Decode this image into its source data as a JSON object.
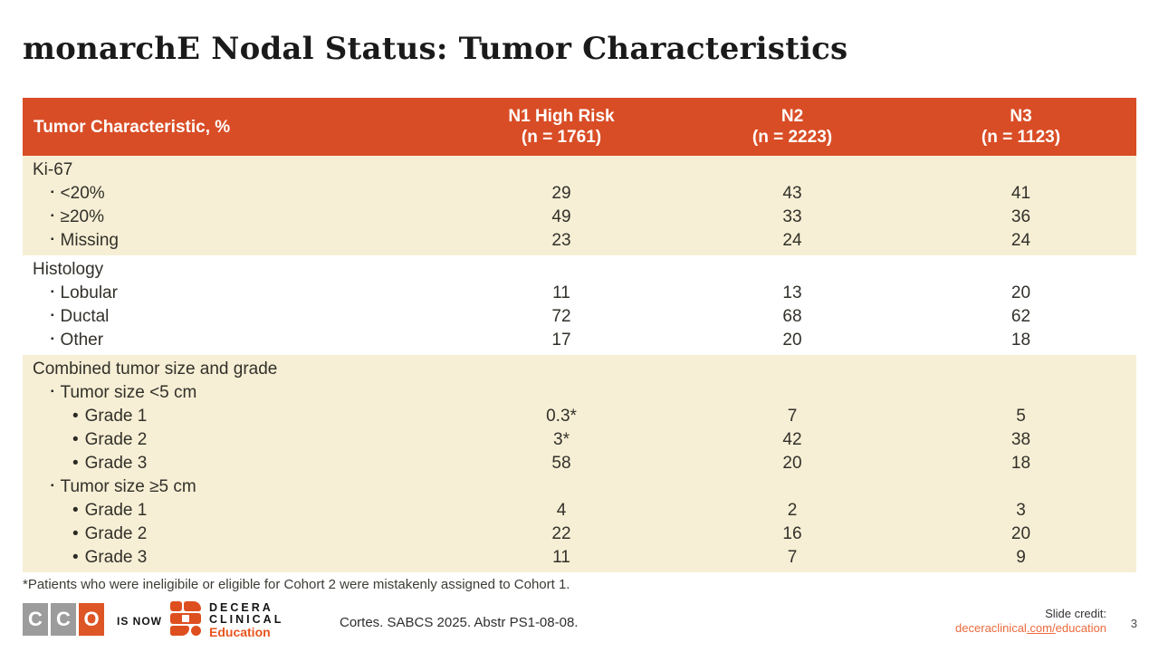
{
  "title": "monarchE Nodal Status: Tumor Characteristics",
  "table": {
    "header": {
      "col1": "Tumor Characteristic, %",
      "columns": [
        {
          "line1": "N1 High Risk",
          "line2": "(n = 1761)"
        },
        {
          "line1": "N2",
          "line2": "(n = 2223)"
        },
        {
          "line1": "N3",
          "line2": "(n = 1123)"
        }
      ]
    },
    "bullets": {
      "level1": "▪",
      "level2": "•"
    },
    "sections": [
      {
        "bg": "cream",
        "rows": [
          {
            "label": "Ki-67",
            "level": 0,
            "values": [
              "",
              "",
              ""
            ]
          },
          {
            "label": "<20%",
            "level": 1,
            "values": [
              "29",
              "43",
              "41"
            ]
          },
          {
            "label": "≥20%",
            "level": 1,
            "values": [
              "49",
              "33",
              "36"
            ]
          },
          {
            "label": "Missing",
            "level": 1,
            "values": [
              "23",
              "24",
              "24"
            ]
          }
        ]
      },
      {
        "bg": "white",
        "rows": [
          {
            "label": "Histology",
            "level": 0,
            "values": [
              "",
              "",
              ""
            ]
          },
          {
            "label": "Lobular",
            "level": 1,
            "values": [
              "11",
              "13",
              "20"
            ]
          },
          {
            "label": "Ductal",
            "level": 1,
            "values": [
              "72",
              "68",
              "62"
            ]
          },
          {
            "label": "Other",
            "level": 1,
            "values": [
              "17",
              "20",
              "18"
            ]
          }
        ]
      },
      {
        "bg": "cream",
        "rows": [
          {
            "label": "Combined tumor size and grade",
            "level": 0,
            "values": [
              "",
              "",
              ""
            ]
          },
          {
            "label": "Tumor size <5 cm",
            "level": 1,
            "values": [
              "",
              "",
              ""
            ]
          },
          {
            "label": "Grade 1",
            "level": 2,
            "values": [
              "0.3*",
              "7",
              "5"
            ]
          },
          {
            "label": "Grade 2",
            "level": 2,
            "values": [
              "3*",
              "42",
              "38"
            ]
          },
          {
            "label": "Grade 3",
            "level": 2,
            "values": [
              "58",
              "20",
              "18"
            ]
          },
          {
            "label": "Tumor size ≥5 cm",
            "level": 1,
            "values": [
              "",
              "",
              ""
            ]
          },
          {
            "label": "Grade 1",
            "level": 2,
            "values": [
              "4",
              "2",
              "3"
            ]
          },
          {
            "label": "Grade 2",
            "level": 2,
            "values": [
              "22",
              "16",
              "20"
            ]
          },
          {
            "label": "Grade 3",
            "level": 2,
            "values": [
              "11",
              "7",
              "9"
            ]
          }
        ]
      }
    ]
  },
  "footnote": "*Patients who were ineligibile or eligible for Cohort 2 were mistakenly assigned to Cohort 1.",
  "footer": {
    "cco_letters": [
      "C",
      "C",
      "O"
    ],
    "is_now_label": "IS NOW",
    "decera_name_line1": "DECERA",
    "decera_name_line2": "CLINICAL",
    "decera_education": "Education",
    "citation": "Cortes. SABCS 2025. Abstr PS1-08-08.",
    "slide_credit_label": "Slide credit:",
    "link_part1": "deceraclinical",
    "link_part2": ".com/",
    "link_part3": "education",
    "page_number": "3"
  },
  "colors": {
    "header_orange": "#D94D26",
    "row_cream": "#F6EFD5",
    "logo_gray": "#9C9C9C",
    "logo_orange": "#DE4F1F",
    "link_orange": "#EC6A3C"
  }
}
